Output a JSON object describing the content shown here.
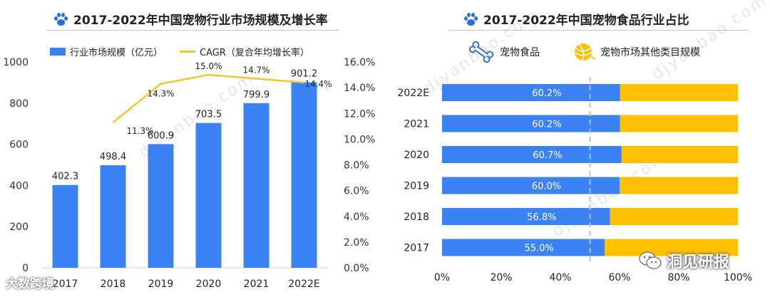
{
  "left": {
    "title": "2017-2022年中国宠物行业市场规模及增长率",
    "legend_bar": "行业市场规模（亿元）",
    "legend_line": "CAGR（复合年均增长率）"
  },
  "right": {
    "title": "2017-2022年中国宠物食品行业占比",
    "legend_food": "宠物食品",
    "legend_other": "宠物市场其他类目规模"
  },
  "watermark": "djyanbao.com",
  "brand_left": "大数跨境",
  "brand_right": "洞见研报",
  "icons": {
    "paw": "paw-icon",
    "bone": "bone-icon",
    "yarn": "yarn-ball-icon",
    "wechat": "wechat-icon"
  },
  "colors": {
    "blue": "#3b82f4",
    "yellow": "#ffc000",
    "line": "#f5c330",
    "paw": "#2a6fe0"
  },
  "chart_data": [
    {
      "type": "bar",
      "categories": [
        "2017",
        "2018",
        "2019",
        "2020",
        "2021",
        "2022E"
      ],
      "series": [
        {
          "name": "行业市场规模（亿元）",
          "type": "bar",
          "axis": "left",
          "values": [
            402.3,
            498.4,
            600.9,
            703.5,
            799.9,
            901.2
          ],
          "labels": [
            "402.3",
            "498.4",
            "600.9",
            "703.5",
            "799.9",
            "901.2"
          ]
        },
        {
          "name": "CAGR（复合年均增长率）",
          "type": "line",
          "axis": "right",
          "values": [
            null,
            11.3,
            14.3,
            15.0,
            14.7,
            14.4
          ],
          "labels": [
            "",
            "11.3%",
            "14.3%",
            "15.0%",
            "14.7%",
            "14.4%"
          ]
        }
      ],
      "ylim": [
        0,
        1000
      ],
      "yticks": [
        "0",
        "200",
        "400",
        "600",
        "800",
        "1000"
      ],
      "y2lim": [
        0,
        16
      ],
      "y2ticks": [
        "0.0%",
        "2.0%",
        "4.0%",
        "6.0%",
        "8.0%",
        "10.0%",
        "12.0%",
        "14.0%",
        "16.0%"
      ],
      "legend": "top"
    },
    {
      "type": "bar",
      "orientation": "horizontal",
      "stacked": true,
      "categories": [
        "2022E",
        "2021",
        "2020",
        "2019",
        "2018",
        "2017"
      ],
      "series": [
        {
          "name": "宠物食品",
          "values": [
            60.2,
            60.2,
            60.7,
            60.0,
            56.8,
            55.0
          ],
          "labels": [
            "60.2%",
            "60.2%",
            "60.7%",
            "60.0%",
            "56.8%",
            "55.0%"
          ]
        },
        {
          "name": "宠物市场其他类目规模",
          "values": [
            39.8,
            39.8,
            39.3,
            40.0,
            43.2,
            45.0
          ]
        }
      ],
      "xlim": [
        0,
        100
      ],
      "xticks": [
        "0%",
        "20%",
        "40%",
        "60%",
        "80%",
        "100%"
      ],
      "reference_line": 50,
      "legend": "top"
    }
  ]
}
